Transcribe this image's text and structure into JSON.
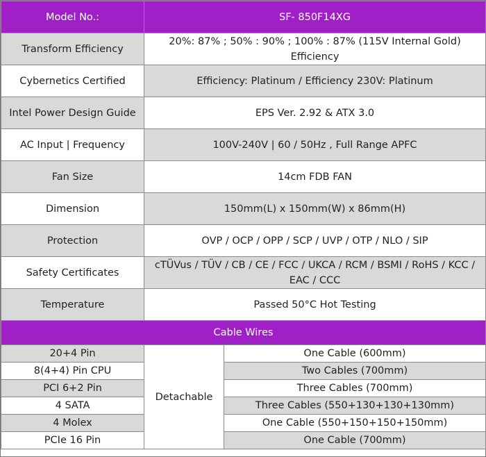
{
  "header": {
    "label": "Model No.:",
    "model": "SF- 850F14XG"
  },
  "specs": [
    {
      "label": "Transform Efficiency",
      "value": "20%: 87% ; 50% : 90% ; 100% : 87% (115V Internal Gold) Efficiency"
    },
    {
      "label": "Cybernetics Certified",
      "value": "Efficiency: Platinum  /  Efficiency 230V: Platinum"
    },
    {
      "label": "Intel Power Design Guide",
      "value": "EPS Ver. 2.92 & ATX 3.0"
    },
    {
      "label": "AC Input | Frequency",
      "value": "100V-240V | 60 / 50Hz , Full Range APFC"
    },
    {
      "label": "Fan Size",
      "value": "14cm FDB FAN"
    },
    {
      "label": "Dimension",
      "value": "150mm(L) x 150mm(W) x 86mm(H)"
    },
    {
      "label": "Protection",
      "value": "OVP / OCP / OPP / SCP / UVP / OTP / NLO / SIP"
    },
    {
      "label": "Safety Certificates",
      "value": "cTÜVus / TÜV / CB / CE / FCC / UKCA / RCM / BSMI / RoHS / KCC / EAC / CCC"
    },
    {
      "label": "Temperature",
      "value": "Passed 50°C Hot Testing"
    }
  ],
  "cables": {
    "title": "Cable Wires",
    "type": "Detachable",
    "rows": [
      {
        "connector": "20+4 Pin",
        "cable": "One Cable (600mm)"
      },
      {
        "connector": "8(4+4) Pin CPU",
        "cable": "Two Cables (700mm)"
      },
      {
        "connector": "PCI 6+2 Pin",
        "cable": "Three Cables (700mm)"
      },
      {
        "connector": "4 SATA",
        "cable": "Three Cables (550+130+130+130mm)"
      },
      {
        "connector": "4 Molex",
        "cable": "One Cable (550+150+150+150mm)"
      },
      {
        "connector": "PCIe 16 Pin",
        "cable": "One Cable (700mm)"
      }
    ]
  }
}
